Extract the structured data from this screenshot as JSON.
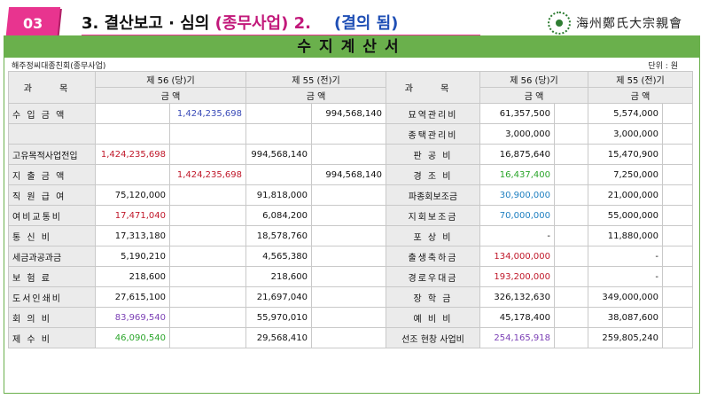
{
  "header": {
    "badge": "03",
    "title_main": "3. 결산보고 · 심의 ",
    "title_paren": "(종무사업) 2.",
    "title_result": "(결의 됨)",
    "org_name": "海州鄭氏大宗親會",
    "seal_text": "鄭"
  },
  "sheet": {
    "title": "수지계산서",
    "org_left": "해주정씨대종친회(종무사업)",
    "unit": "단위 : 원"
  },
  "table": {
    "col_item": "과      목",
    "col_cur": "제  56 (당)기",
    "col_prev": "제  55 (전)기",
    "col_amount": "금     액",
    "left_rows": [
      {
        "label": "수 입 금 액",
        "c1": "",
        "c2": "1,424,235,698",
        "p1": "",
        "p2": "994,568,140",
        "c2_color": "blue"
      },
      {
        "label": "",
        "c1": "",
        "c2": "",
        "p1": "",
        "p2": ""
      },
      {
        "label": "고유목적사업전입",
        "c1": "1,424,235,698",
        "c2": "",
        "p1": "994,568,140",
        "p2": "",
        "c1_color": "red",
        "tight": true
      },
      {
        "label": "지 출 금 액",
        "c1": "",
        "c2": "1,424,235,698",
        "p1": "",
        "p2": "994,568,140",
        "c2_color": "red"
      },
      {
        "label": "직 원 급 여",
        "c1": "75,120,000",
        "c2": "",
        "p1": "91,818,000",
        "p2": ""
      },
      {
        "label": "여비교통비",
        "c1": "17,471,040",
        "c2": "",
        "p1": "6,084,200",
        "p2": "",
        "c1_color": "red"
      },
      {
        "label": "통  신  비",
        "c1": "17,313,180",
        "c2": "",
        "p1": "18,578,760",
        "p2": ""
      },
      {
        "label": "세금과공과금",
        "c1": "5,190,210",
        "c2": "",
        "p1": "4,565,380",
        "p2": "",
        "tight": true
      },
      {
        "label": "보  험  료",
        "c1": "218,600",
        "c2": "",
        "p1": "218,600",
        "p2": ""
      },
      {
        "label": "도서인쇄비",
        "c1": "27,615,100",
        "c2": "",
        "p1": "21,697,040",
        "p2": ""
      },
      {
        "label": "회  의  비",
        "c1": "83,969,540",
        "c2": "",
        "p1": "55,970,010",
        "p2": "",
        "c1_color": "pur"
      },
      {
        "label": "제  수  비",
        "c1": "46,090,540",
        "c2": "",
        "p1": "29,568,410",
        "p2": "",
        "c1_color": "grn"
      }
    ],
    "right_rows": [
      {
        "label": "묘역관리비",
        "c1": "61,357,500",
        "p1": "5,574,000"
      },
      {
        "label": "종택관리비",
        "c1": "3,000,000",
        "p1": "3,000,000"
      },
      {
        "label": "판  공  비",
        "c1": "16,875,640",
        "p1": "15,470,900"
      },
      {
        "label": "경  조  비",
        "c1": "16,437,400",
        "p1": "7,250,000",
        "c1_color": "grn"
      },
      {
        "label": "파종회보조금",
        "c1": "30,900,000",
        "p1": "21,000,000",
        "c1_color": "cyan",
        "tight": true
      },
      {
        "label": "지회보조금",
        "c1": "70,000,000",
        "p1": "55,000,000",
        "c1_color": "cyan"
      },
      {
        "label": "포  상  비",
        "c1": "-",
        "p1": "11,880,000"
      },
      {
        "label": "출생축하금",
        "c1": "134,000,000",
        "p1": "-",
        "c1_color": "red"
      },
      {
        "label": "경로우대금",
        "c1": "193,200,000",
        "p1": "-",
        "c1_color": "red"
      },
      {
        "label": "장  학  금",
        "c1": "326,132,630",
        "p1": "349,000,000"
      },
      {
        "label": "예  비  비",
        "c1": "45,178,400",
        "p1": "38,087,600"
      },
      {
        "label": "선조 현창 사업비",
        "c1": "254,165,918",
        "p1": "259,805,240",
        "c1_color": "pur",
        "tight": true
      }
    ]
  },
  "colors": {
    "accent": "#e8348f",
    "title_bar": "#6ab04c",
    "label_bg": "#ebebeb"
  }
}
